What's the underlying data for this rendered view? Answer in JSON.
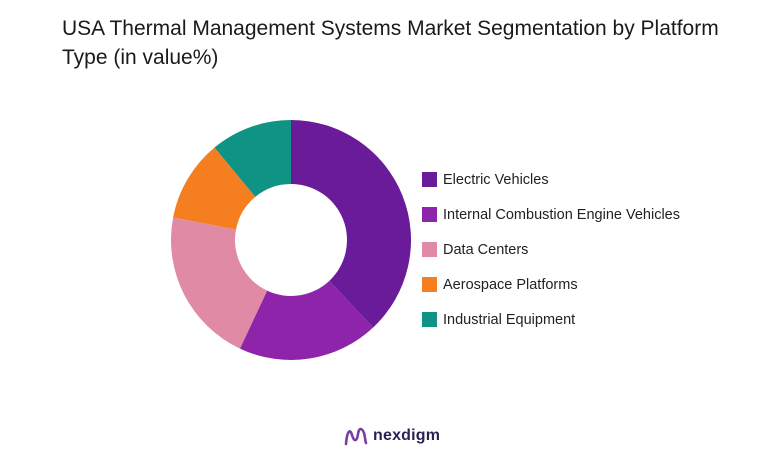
{
  "chart_data": {
    "type": "pie",
    "variant": "donut",
    "title": "USA Thermal Management Systems Market Segmentation by Platform Type (in value%)",
    "categories": [
      "Electric Vehicles",
      "Internal Combustion Engine Vehicles",
      "Data Centers",
      "Aerospace Platforms",
      "Industrial Equipment"
    ],
    "values": [
      38,
      19,
      21,
      11,
      11
    ],
    "colors": [
      "#6a1b9a",
      "#8e24aa",
      "#e08aa5",
      "#f57f20",
      "#0e9384"
    ],
    "legend_position": "right"
  },
  "brand": {
    "name": "nexdigm",
    "logo_icon": "nexdigm-logo-icon",
    "logo_color": "#7b3fa0",
    "text_color": "#2b2256"
  }
}
